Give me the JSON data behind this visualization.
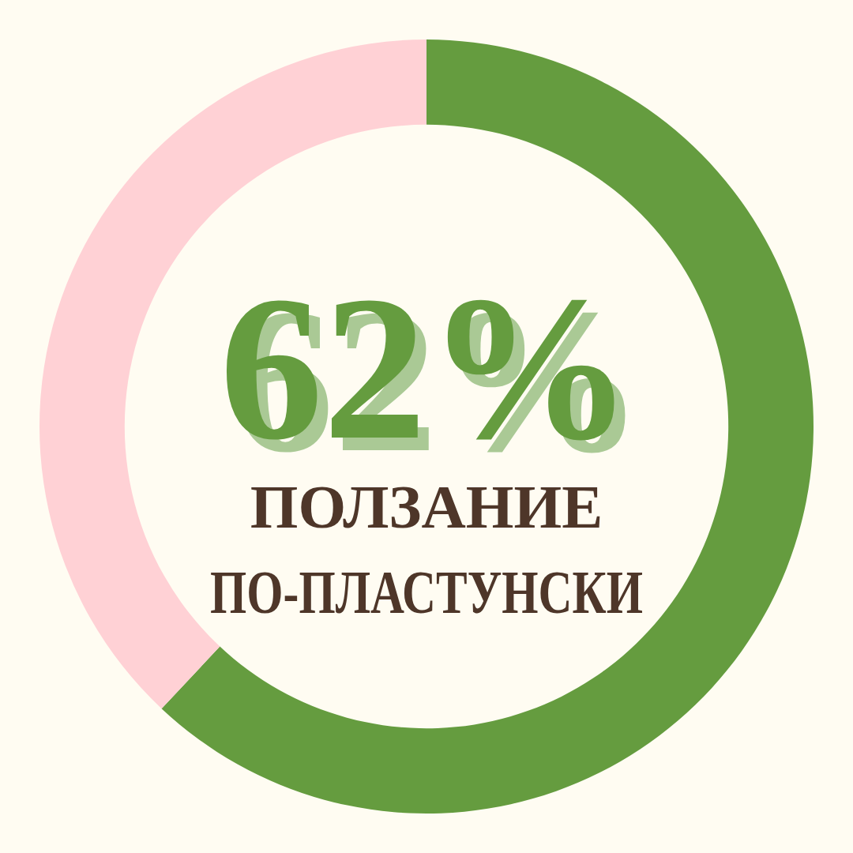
{
  "chart_data": {
    "type": "donut",
    "categories": [
      "ПОЛЗАНИЕ ПО-ПЛАСТУНСКИ",
      null
    ],
    "values": [
      62,
      38
    ],
    "colors": [
      "#659c3f",
      "#ffd1d5"
    ],
    "value_labels": [
      "62%",
      null
    ],
    "legend": false
  }
}
